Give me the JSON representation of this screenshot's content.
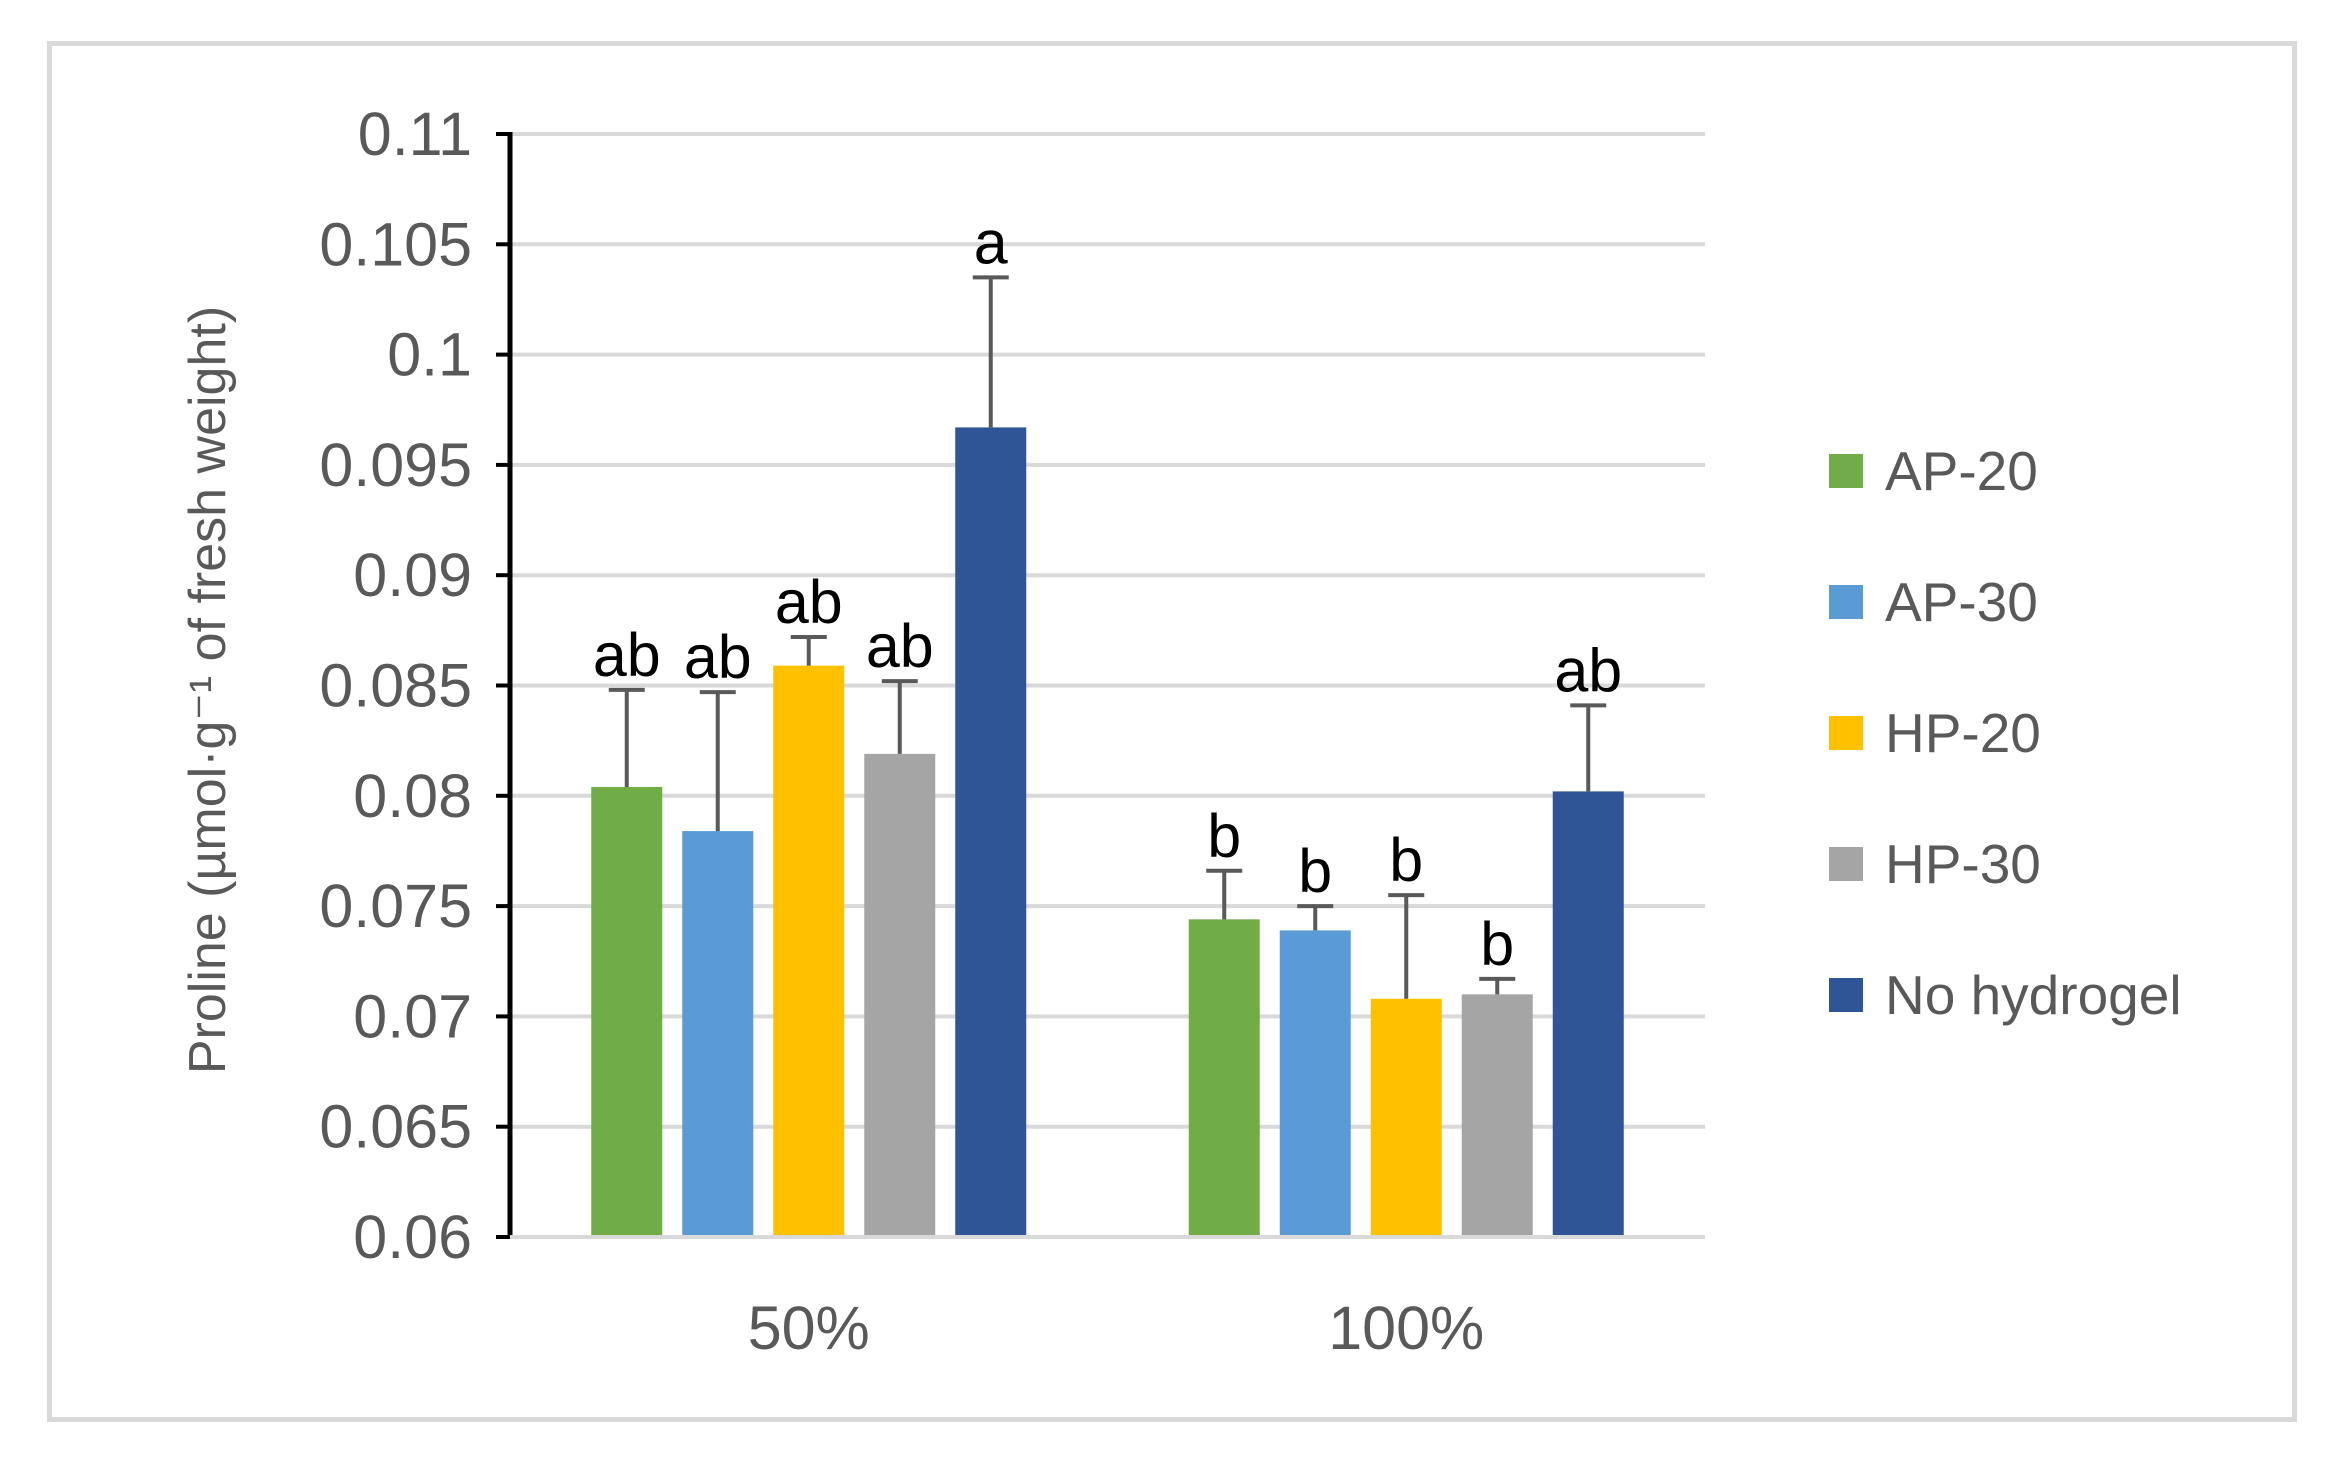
{
  "chart_data": {
    "type": "bar",
    "title": "",
    "ylabel": "Proline (µmol·g⁻¹ of fresh weight)",
    "xlabel": "",
    "ylim": [
      0.06,
      0.11
    ],
    "ytick_step": 0.005,
    "yticks": [
      "0.06",
      "0.065",
      "0.07",
      "0.075",
      "0.08",
      "0.085",
      "0.09",
      "0.095",
      "0.1",
      "0.105",
      "0.11"
    ],
    "categories": [
      "50%",
      "100%"
    ],
    "grid": true,
    "legend_position": "right",
    "series": [
      {
        "name": "AP-20",
        "color": "#70ad47",
        "values": [
          0.0804,
          0.0744
        ],
        "errors": [
          0.0044,
          0.0022
        ],
        "letters": [
          "ab",
          "b"
        ]
      },
      {
        "name": "AP-30",
        "color": "#5b9bd5",
        "values": [
          0.0784,
          0.0739
        ],
        "errors": [
          0.0063,
          0.0011
        ],
        "letters": [
          "ab",
          "b"
        ]
      },
      {
        "name": "HP-20",
        "color": "#ffc000",
        "values": [
          0.0859,
          0.0708
        ],
        "errors": [
          0.0013,
          0.0047
        ],
        "letters": [
          "ab",
          "b"
        ]
      },
      {
        "name": "HP-30",
        "color": "#a5a5a5",
        "values": [
          0.0819,
          0.071
        ],
        "errors": [
          0.0033,
          0.0007
        ],
        "letters": [
          "ab",
          "b"
        ]
      },
      {
        "name": "No hydrogel",
        "color": "#2f5597",
        "values": [
          0.0967,
          0.0802
        ],
        "errors": [
          0.0068,
          0.0039
        ],
        "letters": [
          "a",
          "ab"
        ]
      }
    ]
  }
}
